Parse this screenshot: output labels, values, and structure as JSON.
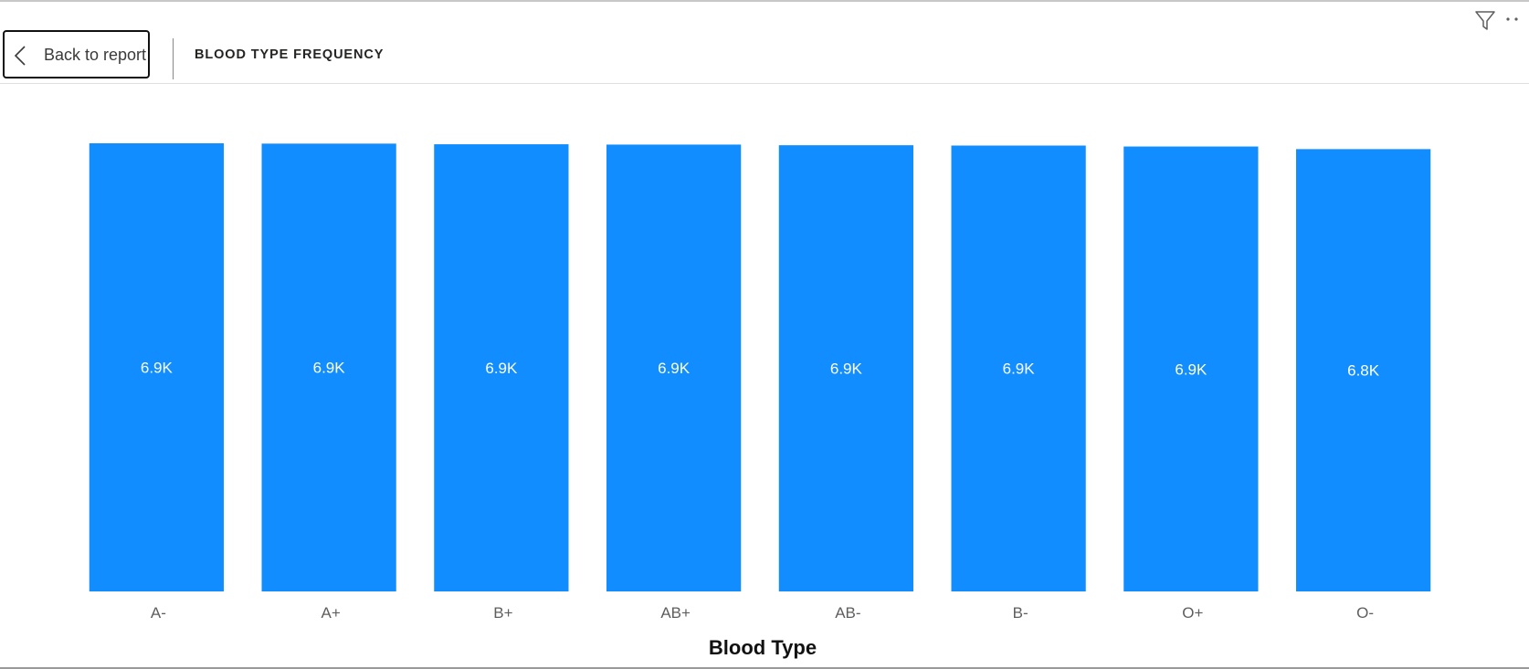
{
  "header": {
    "back_label": "Back to report",
    "title": "BLOOD TYPE FREQUENCY"
  },
  "icons": {
    "back": "chevron-left-icon",
    "filter": "filter-icon",
    "more": "more-options-icon"
  },
  "colors": {
    "bar": "#118dff",
    "data_label": "#ffffff"
  },
  "chart_data": {
    "type": "bar",
    "categories": [
      "A-",
      "A+",
      "B+",
      "AB+",
      "AB-",
      "B-",
      "O+",
      "O-"
    ],
    "values": [
      6920,
      6915,
      6905,
      6900,
      6890,
      6885,
      6870,
      6830
    ],
    "data_labels": [
      "6.9K",
      "6.9K",
      "6.9K",
      "6.9K",
      "6.9K",
      "6.9K",
      "6.9K",
      "6.8K"
    ],
    "xlabel": "Blood Type",
    "ylabel": "",
    "ylim": [
      0,
      6920
    ],
    "grid": false,
    "legend": "none"
  }
}
